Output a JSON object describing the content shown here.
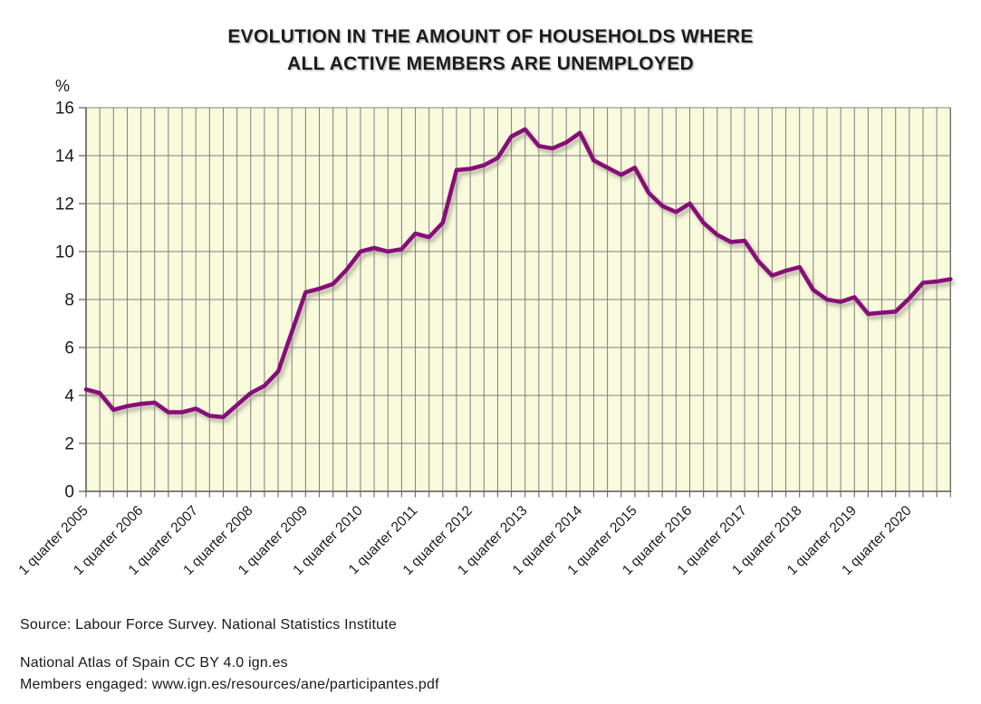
{
  "title": {
    "line1": "EVOLUTION IN THE AMOUNT OF HOUSEHOLDS WHERE",
    "line2": "ALL ACTIVE MEMBERS ARE UNEMPLOYED"
  },
  "footer": {
    "source": "Source: Labour Force Survey. National Statistics Institute",
    "attribution": "National Atlas of Spain CC BY 4.0 ign.es",
    "members": "Members engaged: www.ign.es/resources/ane/participantes.pdf"
  },
  "chart_data": {
    "type": "line",
    "title": "EVOLUTION IN THE AMOUNT OF HOUSEHOLDS WHERE ALL ACTIVE MEMBERS ARE UNEMPLOYED",
    "xlabel": "",
    "ylabel": "%",
    "ylim": [
      0,
      16
    ],
    "y_ticks": [
      0,
      2,
      4,
      6,
      8,
      10,
      12,
      14,
      16
    ],
    "grid": "on",
    "legend_position": "none",
    "x_tick_labels": [
      "1 quarter 2005",
      "1 quarter 2006",
      "1 quarter 2007",
      "1 quarter 2008",
      "1 quarter 2009",
      "1 quarter 2010",
      "1 quarter 2011",
      "1 quarter 2012",
      "1 quarter 2013",
      "1 quarter 2014",
      "1 quarter 2015",
      "1 quarter 2016",
      "1 quarter 2017",
      "1 quarter 2018",
      "1 quarter 2019",
      "1 quarter 2020"
    ],
    "x_ticks_every": 4,
    "categories": [
      "2005 Q1",
      "2005 Q2",
      "2005 Q3",
      "2005 Q4",
      "2006 Q1",
      "2006 Q2",
      "2006 Q3",
      "2006 Q4",
      "2007 Q1",
      "2007 Q2",
      "2007 Q3",
      "2007 Q4",
      "2008 Q1",
      "2008 Q2",
      "2008 Q3",
      "2008 Q4",
      "2009 Q1",
      "2009 Q2",
      "2009 Q3",
      "2009 Q4",
      "2010 Q1",
      "2010 Q2",
      "2010 Q3",
      "2010 Q4",
      "2011 Q1",
      "2011 Q2",
      "2011 Q3",
      "2011 Q4",
      "2012 Q1",
      "2012 Q2",
      "2012 Q3",
      "2012 Q4",
      "2013 Q1",
      "2013 Q2",
      "2013 Q3",
      "2013 Q4",
      "2014 Q1",
      "2014 Q2",
      "2014 Q3",
      "2014 Q4",
      "2015 Q1",
      "2015 Q2",
      "2015 Q3",
      "2015 Q4",
      "2016 Q1",
      "2016 Q2",
      "2016 Q3",
      "2016 Q4",
      "2017 Q1",
      "2017 Q2",
      "2017 Q3",
      "2017 Q4",
      "2018 Q1",
      "2018 Q2",
      "2018 Q3",
      "2018 Q4",
      "2019 Q1",
      "2019 Q2",
      "2019 Q3",
      "2019 Q4",
      "2020 Q1",
      "2020 Q2",
      "2020 Q3",
      "2020 Q4"
    ],
    "series": [
      {
        "name": "% of households where all active members are unemployed",
        "values": [
          4.25,
          4.1,
          3.4,
          3.55,
          3.65,
          3.7,
          3.3,
          3.3,
          3.45,
          3.15,
          3.1,
          3.6,
          4.1,
          4.4,
          5.0,
          6.65,
          8.3,
          8.45,
          8.65,
          9.25,
          10.0,
          10.15,
          10.0,
          10.1,
          10.75,
          10.6,
          11.2,
          13.4,
          13.45,
          13.6,
          13.9,
          14.8,
          15.1,
          14.4,
          14.3,
          14.55,
          14.95,
          13.8,
          13.5,
          13.2,
          13.5,
          12.45,
          11.9,
          11.65,
          12.0,
          11.2,
          10.7,
          10.4,
          10.45,
          9.6,
          9.0,
          9.2,
          9.35,
          8.4,
          8.0,
          7.9,
          8.1,
          7.4,
          7.45,
          7.5,
          8.05,
          8.7,
          8.75,
          8.85
        ]
      }
    ],
    "colors": {
      "line": "#870a78",
      "line_shadow": "#8e8e7e",
      "plot_background": "#f9f9dc",
      "grid": "#7f7f7f",
      "axis": "#6e6e6e",
      "text": "#1a1a1a",
      "page_background": "#ffffff"
    }
  }
}
